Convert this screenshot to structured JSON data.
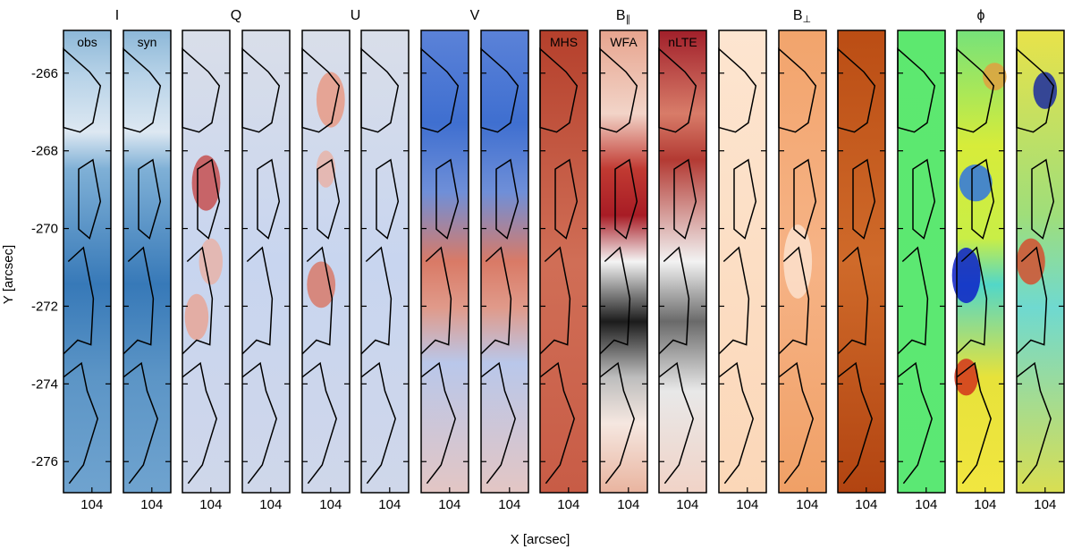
{
  "chart_data": {
    "type": "heatmap",
    "ylabel": "Y [arcsec]",
    "xlabel": "X [arcsec]",
    "ylim": [
      -276.8,
      -264.9
    ],
    "y_ticks": [
      -266,
      -268,
      -270,
      -272,
      -274,
      -276
    ],
    "y_tick_labels": [
      "-266",
      "-268",
      "-270",
      "-272",
      "-274",
      "-276"
    ],
    "x_tick_label": "104",
    "groups": [
      {
        "title": "I",
        "sub": "",
        "panels": [
          "obs",
          "syn"
        ]
      },
      {
        "title": "Q",
        "sub": "",
        "panels": [
          "",
          ""
        ]
      },
      {
        "title": "U",
        "sub": "",
        "panels": [
          "",
          ""
        ]
      },
      {
        "title": "V",
        "sub": "",
        "panels": [
          "",
          ""
        ]
      },
      {
        "title": "B",
        "sub": "∥",
        "panels": [
          "MHS",
          "WFA",
          "nLTE"
        ]
      },
      {
        "title": "B",
        "sub": "⊥",
        "panels": [
          "",
          "",
          ""
        ]
      },
      {
        "title": "ϕ",
        "sub": "",
        "panels": [
          "",
          "",
          ""
        ]
      }
    ],
    "panels": [
      {
        "id": "I-obs",
        "colormap": "blues"
      },
      {
        "id": "I-syn",
        "colormap": "blues"
      },
      {
        "id": "Q-obs",
        "colormap": "diverging"
      },
      {
        "id": "Q-syn",
        "colormap": "diverging"
      },
      {
        "id": "U-obs",
        "colormap": "diverging"
      },
      {
        "id": "U-syn",
        "colormap": "diverging"
      },
      {
        "id": "V-obs",
        "colormap": "diverging"
      },
      {
        "id": "V-syn",
        "colormap": "diverging"
      },
      {
        "id": "Bpar-MHS",
        "colormap": "red-white-black"
      },
      {
        "id": "Bpar-WFA",
        "colormap": "red-white-black"
      },
      {
        "id": "Bpar-nLTE",
        "colormap": "red-white-black"
      },
      {
        "id": "Bperp-MHS",
        "colormap": "oranges"
      },
      {
        "id": "Bperp-WFA",
        "colormap": "oranges"
      },
      {
        "id": "Bperp-nLTE",
        "colormap": "oranges"
      },
      {
        "id": "phi-MHS",
        "colormap": "jet"
      },
      {
        "id": "phi-WFA",
        "colormap": "jet"
      },
      {
        "id": "phi-nLTE",
        "colormap": "jet"
      }
    ]
  }
}
